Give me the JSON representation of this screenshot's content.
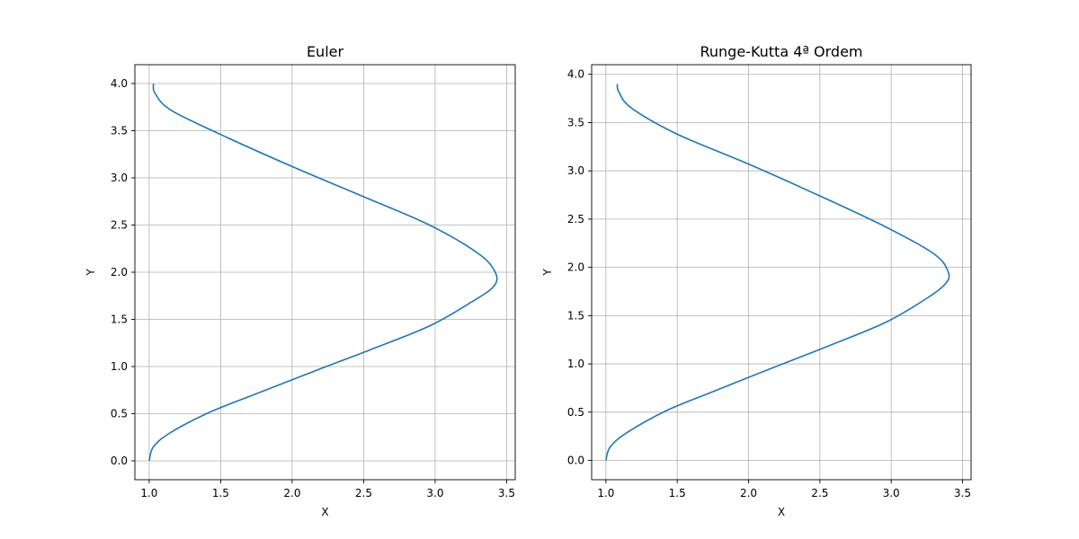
{
  "chart_data": [
    {
      "type": "line",
      "title": "Euler",
      "xlabel": "X",
      "ylabel": "Y",
      "xlim": [
        0.9,
        3.56
      ],
      "ylim": [
        -0.2,
        4.2
      ],
      "xticks": [
        1.0,
        1.5,
        2.0,
        2.5,
        3.0,
        3.5
      ],
      "yticks": [
        0.0,
        0.5,
        1.0,
        1.5,
        2.0,
        2.5,
        3.0,
        3.5,
        4.0
      ],
      "xtick_labels": [
        "1.0",
        "1.5",
        "2.0",
        "2.5",
        "3.0",
        "3.5"
      ],
      "ytick_labels": [
        "0.0",
        "0.5",
        "1.0",
        "1.5",
        "2.0",
        "2.5",
        "3.0",
        "3.5",
        "4.0"
      ],
      "grid": true,
      "color": "#1f77b4",
      "series": [
        {
          "x": [
            1.0,
            1.03,
            1.15,
            1.43,
            1.73,
            2.17,
            2.55,
            2.96,
            3.25,
            3.41,
            3.42,
            3.3,
            2.96,
            2.5,
            2.0,
            1.5,
            1.15,
            1.04,
            1.03
          ],
          "y": [
            0.0,
            0.15,
            0.3,
            0.52,
            0.7,
            0.96,
            1.18,
            1.43,
            1.68,
            1.85,
            2.0,
            2.2,
            2.5,
            2.8,
            3.12,
            3.46,
            3.72,
            3.9,
            4.0
          ]
        }
      ]
    },
    {
      "type": "line",
      "title": "Runge-Kutta 4ª Ordem",
      "xlabel": "X",
      "ylabel": "Y",
      "xlim": [
        0.9,
        3.56
      ],
      "ylim": [
        -0.2,
        4.1
      ],
      "xticks": [
        1.0,
        1.5,
        2.0,
        2.5,
        3.0,
        3.5
      ],
      "yticks": [
        0.0,
        0.5,
        1.0,
        1.5,
        2.0,
        2.5,
        3.0,
        3.5,
        4.0
      ],
      "xtick_labels": [
        "1.0",
        "1.5",
        "2.0",
        "2.5",
        "3.0",
        "3.5"
      ],
      "ytick_labels": [
        "0.0",
        "0.5",
        "1.0",
        "1.5",
        "2.0",
        "2.5",
        "3.0",
        "3.5",
        "4.0"
      ],
      "grid": true,
      "color": "#1f77b4",
      "series": [
        {
          "x": [
            1.0,
            1.03,
            1.15,
            1.43,
            1.73,
            2.17,
            2.55,
            2.96,
            3.25,
            3.38,
            3.4,
            3.3,
            2.96,
            2.5,
            2.0,
            1.5,
            1.18,
            1.09,
            1.08
          ],
          "y": [
            0.0,
            0.14,
            0.29,
            0.52,
            0.7,
            0.96,
            1.18,
            1.43,
            1.68,
            1.83,
            1.95,
            2.14,
            2.42,
            2.74,
            3.07,
            3.38,
            3.65,
            3.82,
            3.9
          ]
        }
      ]
    }
  ]
}
